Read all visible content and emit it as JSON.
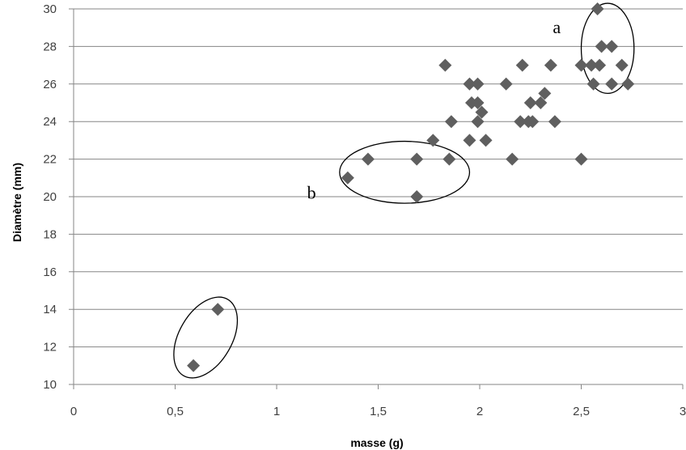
{
  "chart_data": {
    "type": "scatter",
    "xlabel": "masse (g)",
    "ylabel": "Diamètre (mm)",
    "xlim": [
      0,
      3
    ],
    "ylim": [
      10,
      30
    ],
    "x_ticks": [
      "0",
      "0,5",
      "1",
      "1,5",
      "2",
      "2,5",
      "3"
    ],
    "y_ticks": [
      "10",
      "12",
      "14",
      "16",
      "18",
      "20",
      "22",
      "24",
      "26",
      "28",
      "30"
    ],
    "grid": "horizontal",
    "legend": "none",
    "marker": "diamond",
    "colors": {
      "marker": "#5f5f5f",
      "grid": "#868686",
      "axis": "#868686",
      "ellipse": "#000000"
    },
    "points": [
      {
        "x": 0.59,
        "y": 11
      },
      {
        "x": 0.71,
        "y": 14
      },
      {
        "x": 1.35,
        "y": 21
      },
      {
        "x": 1.45,
        "y": 22
      },
      {
        "x": 1.69,
        "y": 22
      },
      {
        "x": 1.69,
        "y": 20
      },
      {
        "x": 1.77,
        "y": 23
      },
      {
        "x": 1.83,
        "y": 27
      },
      {
        "x": 1.85,
        "y": 22
      },
      {
        "x": 1.86,
        "y": 24
      },
      {
        "x": 1.95,
        "y": 26
      },
      {
        "x": 1.95,
        "y": 23
      },
      {
        "x": 1.96,
        "y": 25
      },
      {
        "x": 1.99,
        "y": 26
      },
      {
        "x": 1.99,
        "y": 25
      },
      {
        "x": 1.99,
        "y": 24
      },
      {
        "x": 2.01,
        "y": 24.5
      },
      {
        "x": 2.03,
        "y": 23
      },
      {
        "x": 2.13,
        "y": 26
      },
      {
        "x": 2.16,
        "y": 22
      },
      {
        "x": 2.2,
        "y": 24
      },
      {
        "x": 2.21,
        "y": 27
      },
      {
        "x": 2.24,
        "y": 24
      },
      {
        "x": 2.25,
        "y": 25
      },
      {
        "x": 2.26,
        "y": 24
      },
      {
        "x": 2.3,
        "y": 25
      },
      {
        "x": 2.32,
        "y": 25.5
      },
      {
        "x": 2.35,
        "y": 27
      },
      {
        "x": 2.37,
        "y": 24
      },
      {
        "x": 2.5,
        "y": 22
      },
      {
        "x": 2.5,
        "y": 27
      },
      {
        "x": 2.55,
        "y": 27
      },
      {
        "x": 2.56,
        "y": 26
      },
      {
        "x": 2.58,
        "y": 30
      },
      {
        "x": 2.59,
        "y": 27
      },
      {
        "x": 2.6,
        "y": 28
      },
      {
        "x": 2.65,
        "y": 28
      },
      {
        "x": 2.65,
        "y": 26
      },
      {
        "x": 2.7,
        "y": 27
      },
      {
        "x": 2.73,
        "y": 26
      }
    ],
    "annotations": [
      {
        "label": "a",
        "ellipse": {
          "cx": 2.63,
          "cy": 27.9,
          "rx": 0.13,
          "ry": 2.4,
          "rotate": 0
        },
        "label_at": {
          "x": 2.36,
          "y": 28.7
        }
      },
      {
        "label": "b",
        "ellipse": {
          "cx": 1.63,
          "cy": 21.3,
          "rx": 0.32,
          "ry": 1.65,
          "rotate": 0
        },
        "label_at": {
          "x": 1.15,
          "y": 19.9
        }
      },
      {
        "label": "",
        "ellipse": {
          "cx": 0.65,
          "cy": 12.5,
          "rx": 0.13,
          "ry": 2.35,
          "rotate": 30
        },
        "label_at": null
      }
    ]
  }
}
